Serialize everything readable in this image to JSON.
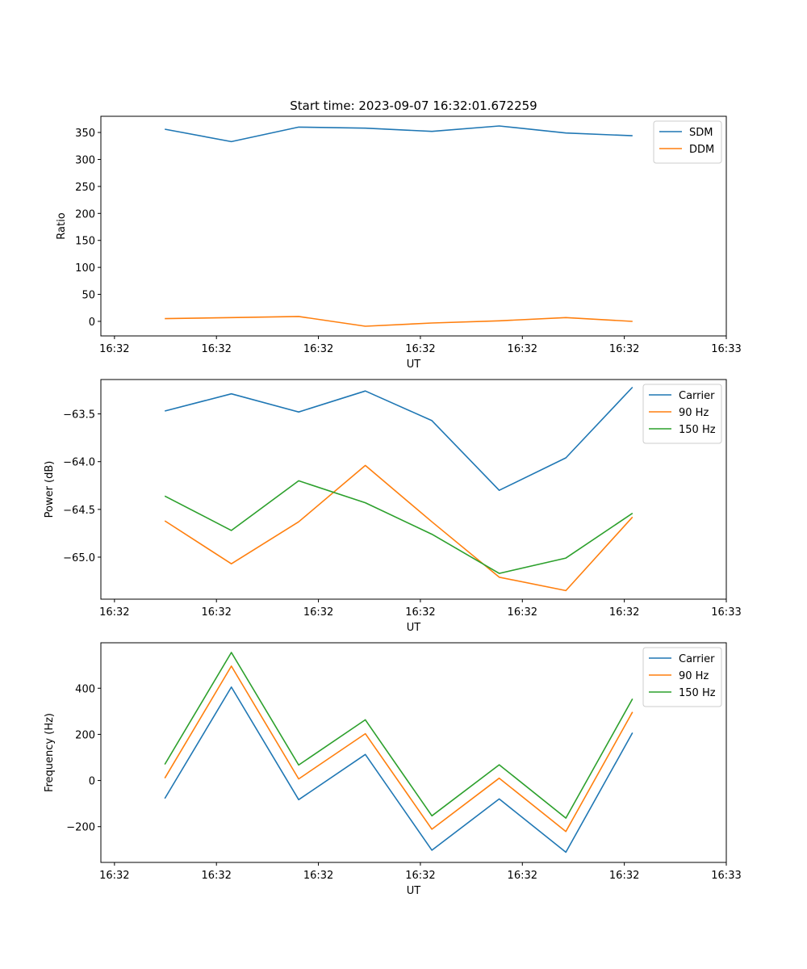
{
  "chart_data": [
    {
      "type": "line",
      "title": "Start time: 2023-09-07 16:32:01.672259",
      "xlabel": "UT",
      "ylabel": "Ratio",
      "xlim": [
        0,
        9.2
      ],
      "x_ticks": [
        {
          "x": 0.2,
          "label": "16:32"
        },
        {
          "x": 1.7,
          "label": "16:32"
        },
        {
          "x": 3.2,
          "label": "16:32"
        },
        {
          "x": 4.7,
          "label": "16:32"
        },
        {
          "x": 6.2,
          "label": "16:32"
        },
        {
          "x": 7.7,
          "label": "16:32"
        },
        {
          "x": 9.2,
          "label": "16:33"
        }
      ],
      "ylim": [
        -27,
        380
      ],
      "y_ticks": [
        0,
        50,
        100,
        150,
        200,
        250,
        300,
        350
      ],
      "y_tick_labels": [
        "0",
        "50",
        "100",
        "150",
        "200",
        "250",
        "300",
        "350"
      ],
      "legend": "top-right",
      "x": [
        0.94,
        1.92,
        2.91,
        3.89,
        4.87,
        5.86,
        6.84,
        7.82
      ],
      "series": [
        {
          "name": "SDM",
          "color": "#1f77b4",
          "values": [
            356,
            333,
            360,
            358,
            352,
            362,
            349,
            344
          ]
        },
        {
          "name": "DDM",
          "color": "#ff7f0e",
          "values": [
            5,
            7,
            9,
            -9,
            -3,
            1,
            7,
            0
          ]
        }
      ]
    },
    {
      "type": "line",
      "title": "",
      "xlabel": "UT",
      "ylabel": "Power (dB)",
      "xlim": [
        0,
        9.2
      ],
      "x_ticks": [
        {
          "x": 0.2,
          "label": "16:32"
        },
        {
          "x": 1.7,
          "label": "16:32"
        },
        {
          "x": 3.2,
          "label": "16:32"
        },
        {
          "x": 4.7,
          "label": "16:32"
        },
        {
          "x": 6.2,
          "label": "16:32"
        },
        {
          "x": 7.7,
          "label": "16:32"
        },
        {
          "x": 9.2,
          "label": "16:33"
        }
      ],
      "ylim": [
        -65.44,
        -63.14
      ],
      "y_ticks": [
        -65.0,
        -64.5,
        -64.0,
        -63.5
      ],
      "y_tick_labels": [
        "−65.0",
        "−64.5",
        "−64.0",
        "−63.5"
      ],
      "legend": "top-right",
      "x": [
        0.94,
        1.92,
        2.91,
        3.89,
        4.87,
        5.86,
        6.84,
        7.82
      ],
      "series": [
        {
          "name": "Carrier",
          "color": "#1f77b4",
          "values": [
            -63.47,
            -63.29,
            -63.48,
            -63.26,
            -63.57,
            -64.3,
            -63.96,
            -63.22
          ]
        },
        {
          "name": "90 Hz",
          "color": "#ff7f0e",
          "values": [
            -64.62,
            -65.07,
            -64.63,
            -64.04,
            -64.63,
            -65.21,
            -65.35,
            -64.58
          ]
        },
        {
          "name": "150 Hz",
          "color": "#2ca02c",
          "values": [
            -64.36,
            -64.72,
            -64.2,
            -64.43,
            -64.76,
            -65.17,
            -65.01,
            -64.54
          ]
        }
      ]
    },
    {
      "type": "line",
      "title": "",
      "xlabel": "UT",
      "ylabel": "Frequency (Hz)",
      "xlim": [
        0,
        9.2
      ],
      "x_ticks": [
        {
          "x": 0.2,
          "label": "16:32"
        },
        {
          "x": 1.7,
          "label": "16:32"
        },
        {
          "x": 3.2,
          "label": "16:32"
        },
        {
          "x": 4.7,
          "label": "16:32"
        },
        {
          "x": 6.2,
          "label": "16:32"
        },
        {
          "x": 7.7,
          "label": "16:32"
        },
        {
          "x": 9.2,
          "label": "16:33"
        }
      ],
      "ylim": [
        -355,
        597
      ],
      "y_ticks": [
        -200,
        0,
        200,
        400
      ],
      "y_tick_labels": [
        "−200",
        "0",
        "200",
        "400"
      ],
      "legend": "top-right",
      "x": [
        0.94,
        1.92,
        2.91,
        3.89,
        4.87,
        5.86,
        6.84,
        7.82
      ],
      "series": [
        {
          "name": "Carrier",
          "color": "#1f77b4",
          "values": [
            -78,
            405,
            -83,
            113,
            -302,
            -80,
            -311,
            207
          ]
        },
        {
          "name": "90 Hz",
          "color": "#ff7f0e",
          "values": [
            10,
            496,
            7,
            203,
            -211,
            10,
            -221,
            297
          ]
        },
        {
          "name": "150 Hz",
          "color": "#2ca02c",
          "values": [
            70,
            555,
            67,
            263,
            -153,
            68,
            -163,
            354
          ]
        }
      ]
    }
  ]
}
